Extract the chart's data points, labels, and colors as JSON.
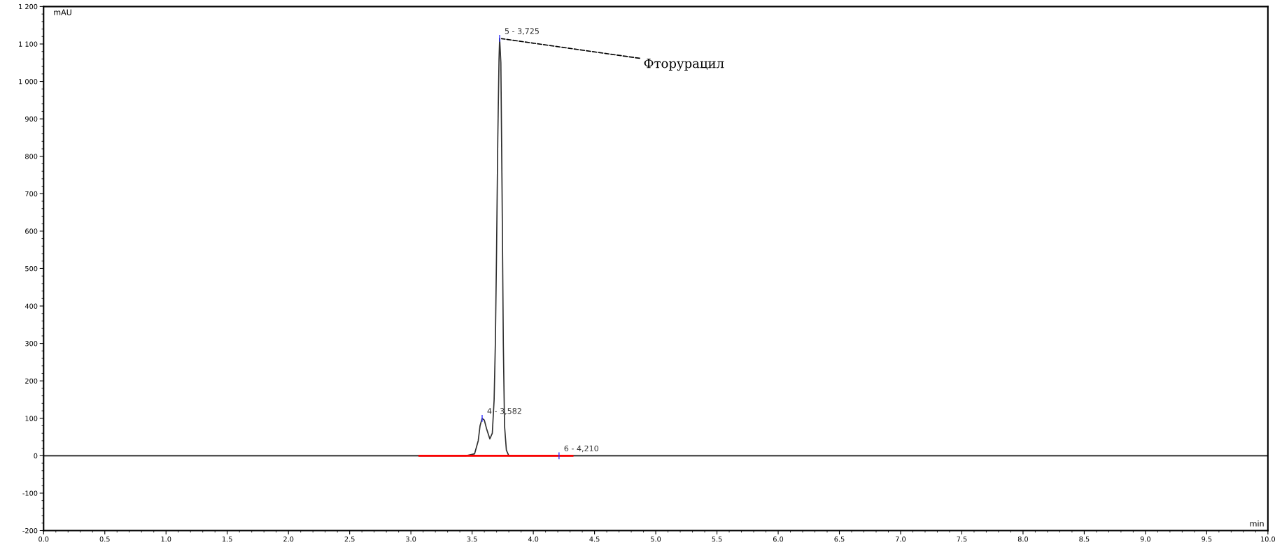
{
  "chart_data": {
    "type": "line",
    "xlabel": "min",
    "ylabel": "mAU",
    "xlim": [
      0,
      10
    ],
    "ylim": [
      -200,
      1200
    ],
    "xticks": [
      {
        "value": 0,
        "label": "0.0"
      },
      0.5,
      {
        "value": 1,
        "label": "1.0"
      },
      1.5,
      {
        "value": 2,
        "label": "2.0"
      },
      2.5,
      {
        "value": 3,
        "label": "3.0"
      },
      3.5,
      {
        "value": 4,
        "label": "4.0"
      },
      4.5,
      {
        "value": 5,
        "label": "5.0"
      },
      5.5,
      {
        "value": 6,
        "label": "6.0"
      },
      6.5,
      {
        "value": 7,
        "label": "7.0"
      },
      7.5,
      {
        "value": 8,
        "label": "8.0"
      },
      8.5,
      {
        "value": 9,
        "label": "9.0"
      },
      9.5,
      {
        "value": 10,
        "label": "10.0"
      }
    ],
    "yticks": [
      -200,
      -100,
      0,
      100,
      200,
      300,
      400,
      500,
      600,
      700,
      800,
      900,
      {
        "value": 1000,
        "label": "1 000"
      },
      {
        "value": 1100,
        "label": "1 100"
      },
      {
        "value": 1200,
        "label": "1 200"
      }
    ],
    "grid": false,
    "legend": false,
    "marker": "none",
    "line_style": "solid",
    "ref_lines": [
      {
        "axis": "y",
        "value": 0,
        "color": "#808080"
      }
    ],
    "series": [
      {
        "color": "#303030",
        "x": [
          0,
          3.0,
          3.45,
          3.52,
          3.55,
          3.565,
          3.582,
          3.6,
          3.62,
          3.645,
          3.665,
          3.68,
          3.69,
          3.7,
          3.71,
          3.72,
          3.725,
          3.735,
          3.745,
          3.755,
          3.765,
          3.78,
          3.8,
          4.5,
          10
        ],
        "values": [
          0,
          0,
          0,
          5,
          40,
          80,
          100,
          95,
          70,
          45,
          60,
          150,
          300,
          550,
          850,
          1060,
          1115,
          1050,
          700,
          300,
          80,
          15,
          0,
          0,
          0
        ]
      },
      {
        "type": "line",
        "color": "#ff0000",
        "x": [
          3.07,
          4.32
        ],
        "values": [
          0,
          0
        ]
      }
    ],
    "annotations": [
      {
        "text": "4 - 3,582",
        "x": 3.582,
        "y": 100
      },
      {
        "text": "5 - 3,725",
        "x": 3.725,
        "y": 1115
      },
      {
        "text": "6 - 4,210",
        "x": 4.21,
        "y": 0
      },
      {
        "text": "Фторурацил",
        "x": 3.725,
        "y": 1115
      }
    ]
  }
}
